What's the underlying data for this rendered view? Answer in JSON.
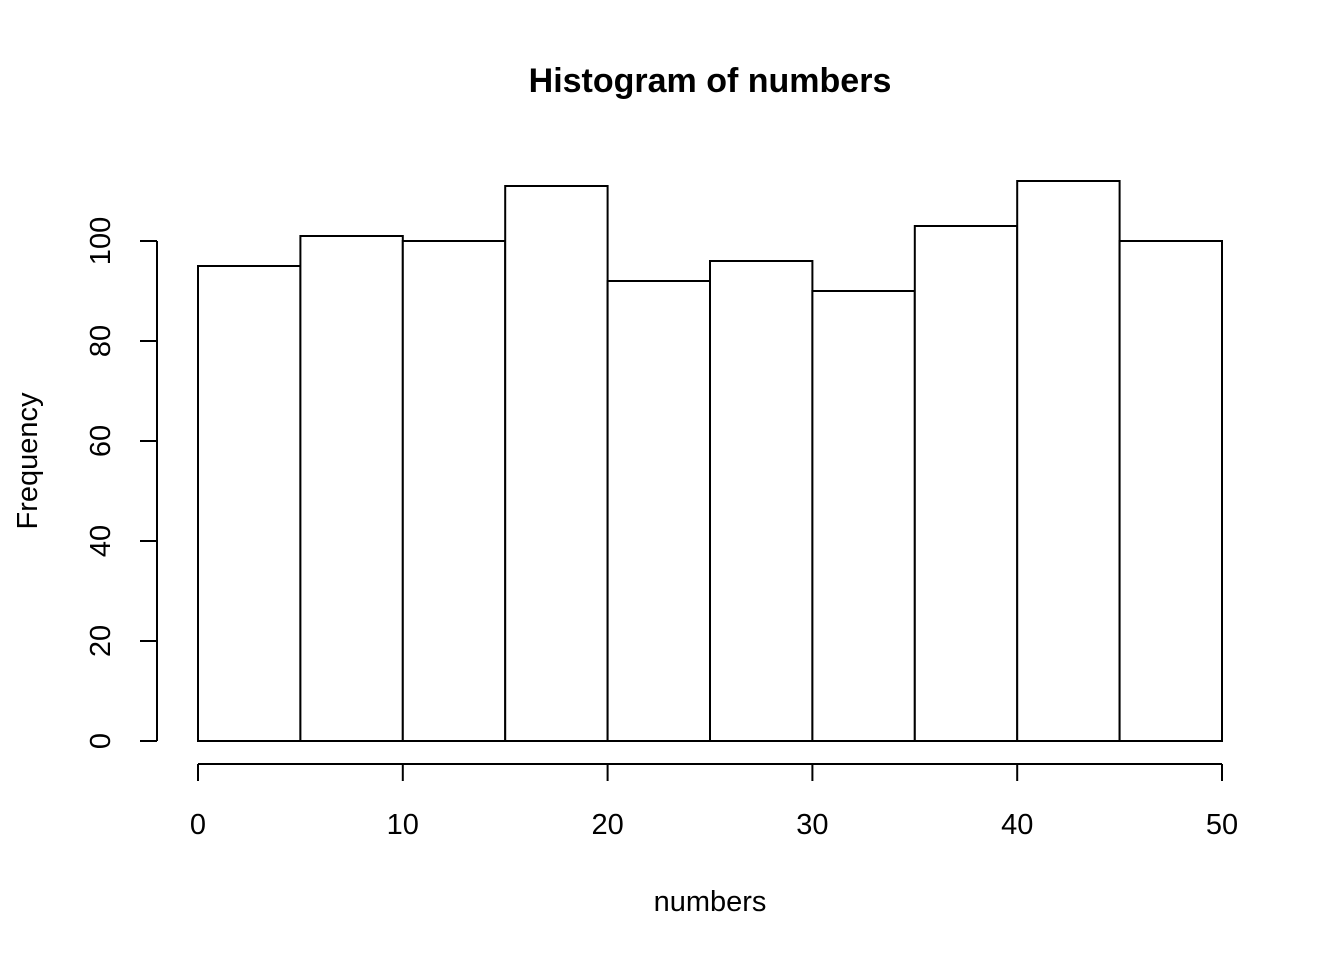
{
  "chart_data": {
    "type": "bar",
    "title": "Histogram of numbers",
    "xlabel": "numbers",
    "ylabel": "Frequency",
    "bins": [
      {
        "start": 0,
        "end": 5,
        "count": 95
      },
      {
        "start": 5,
        "end": 10,
        "count": 101
      },
      {
        "start": 10,
        "end": 15,
        "count": 100
      },
      {
        "start": 15,
        "end": 20,
        "count": 111
      },
      {
        "start": 20,
        "end": 25,
        "count": 92
      },
      {
        "start": 25,
        "end": 30,
        "count": 96
      },
      {
        "start": 30,
        "end": 35,
        "count": 90
      },
      {
        "start": 35,
        "end": 40,
        "count": 103
      },
      {
        "start": 40,
        "end": 45,
        "count": 112
      },
      {
        "start": 45,
        "end": 50,
        "count": 100
      }
    ],
    "xlim": [
      0,
      50
    ],
    "ylim": [
      0,
      112
    ],
    "x_ticks": [
      0,
      10,
      20,
      30,
      40,
      50
    ],
    "y_ticks": [
      0,
      20,
      40,
      60,
      80,
      100
    ],
    "grid": false,
    "legend": "none",
    "bar_fill": "#ffffff",
    "bar_stroke": "#000000"
  }
}
